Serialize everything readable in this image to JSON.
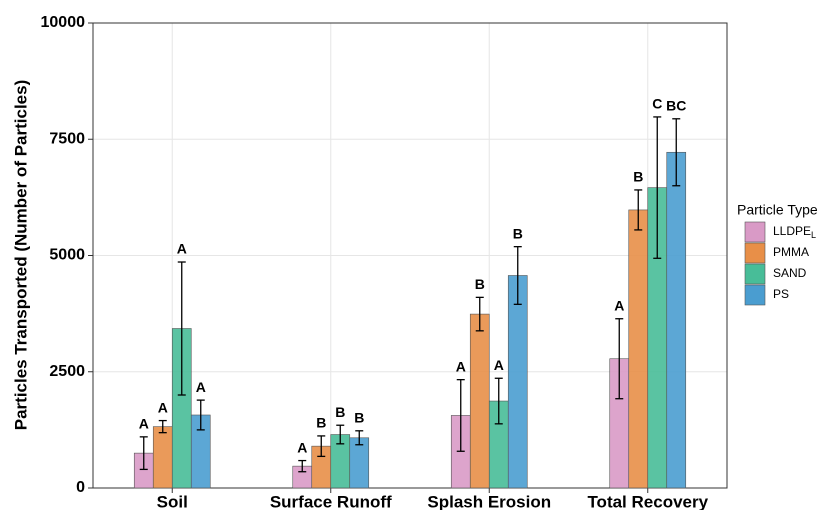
{
  "chart_data": {
    "type": "bar",
    "y_label": "Particles Transported (Number of Particles)",
    "categories": [
      "Soil",
      "Surface Runoff",
      "Splash Erosion",
      "Total Recovery"
    ],
    "legend_title": "Particle Type",
    "series": [
      {
        "name": "LLDPE",
        "subscript": "L",
        "color": "#d99ac6",
        "values": [
          750,
          470,
          1560,
          2780
        ],
        "errors": [
          350,
          120,
          770,
          860
        ],
        "labels": [
          "A",
          "A",
          "A",
          "A"
        ]
      },
      {
        "name": "PMMA",
        "color": "#e88f48",
        "values": [
          1320,
          900,
          3740,
          5980
        ],
        "errors": [
          130,
          220,
          360,
          430
        ],
        "labels": [
          "A",
          "B",
          "B",
          "B"
        ]
      },
      {
        "name": "SAND",
        "color": "#48bd98",
        "values": [
          3430,
          1150,
          1870,
          6460
        ],
        "errors": [
          1430,
          200,
          490,
          1520
        ],
        "labels": [
          "A",
          "B",
          "A",
          "C"
        ]
      },
      {
        "name": "PS",
        "color": "#4a9dd0",
        "values": [
          1570,
          1080,
          4570,
          7220
        ],
        "errors": [
          320,
          150,
          620,
          720
        ],
        "labels": [
          "A",
          "B",
          "B",
          "BC"
        ]
      }
    ],
    "ylim": [
      0,
      10000
    ],
    "yticks": [
      0,
      2500,
      5000,
      7500,
      10000
    ],
    "grid": true
  }
}
